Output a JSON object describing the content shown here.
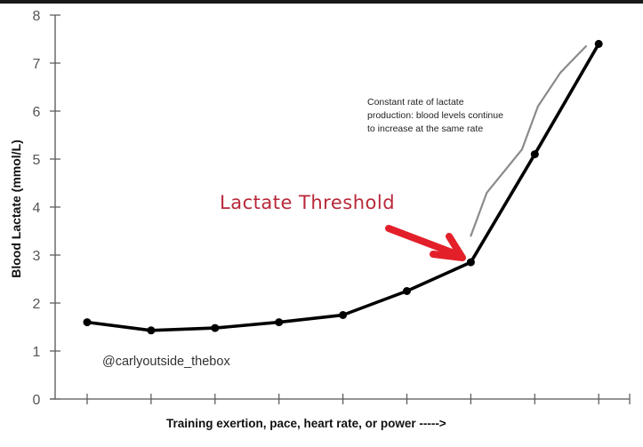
{
  "chart_data": {
    "type": "line",
    "title": "",
    "xlabel": "Training exertion, pace, heart rate, or power  ----->",
    "ylabel": "Blood Lactate (mmol/L)",
    "ylim": [
      0,
      8
    ],
    "yticks": [
      0,
      1,
      2,
      3,
      4,
      5,
      6,
      7,
      8
    ],
    "xticks_count": 9,
    "x": [
      1,
      2,
      3,
      4,
      5,
      6,
      7,
      8,
      9
    ],
    "series": [
      {
        "name": "Blood lactate",
        "color": "#000000",
        "markers": true,
        "values": [
          1.6,
          1.43,
          1.48,
          1.6,
          1.75,
          2.25,
          2.85,
          5.1,
          7.4
        ]
      },
      {
        "name": "Constant rate of lactate production (reference)",
        "color": "#8a8a8a",
        "markers": false,
        "points": [
          [
            7.0,
            3.4
          ],
          [
            7.25,
            4.3
          ],
          [
            7.8,
            5.2
          ],
          [
            8.05,
            6.1
          ],
          [
            8.4,
            6.8
          ],
          [
            8.8,
            7.35
          ]
        ]
      }
    ],
    "annotations": [
      {
        "text": "Lactate Threshold",
        "color": "#b8283a",
        "points_to_x": 7,
        "points_to_y": 2.85
      },
      {
        "text": "Constant rate of lactate production: blood levels continue to increase at the same rate"
      }
    ],
    "grid": false,
    "legend": null
  },
  "labels": {
    "ylabel": "Blood Lactate (mmol/L)",
    "xlabel": "Training exertion, pace, heart rate, or power  ----->",
    "annotation": "Constant rate of lactate production: blood levels continue to increase at the same rate",
    "threshold": "Lactate Threshold",
    "watermark": "@carlyoutside_thebox"
  },
  "colors": {
    "line": "#000000",
    "reference_line": "#8a8a8a",
    "arrow": "#e3202a",
    "threshold_text": "#b8283a",
    "axis": "#555555"
  }
}
